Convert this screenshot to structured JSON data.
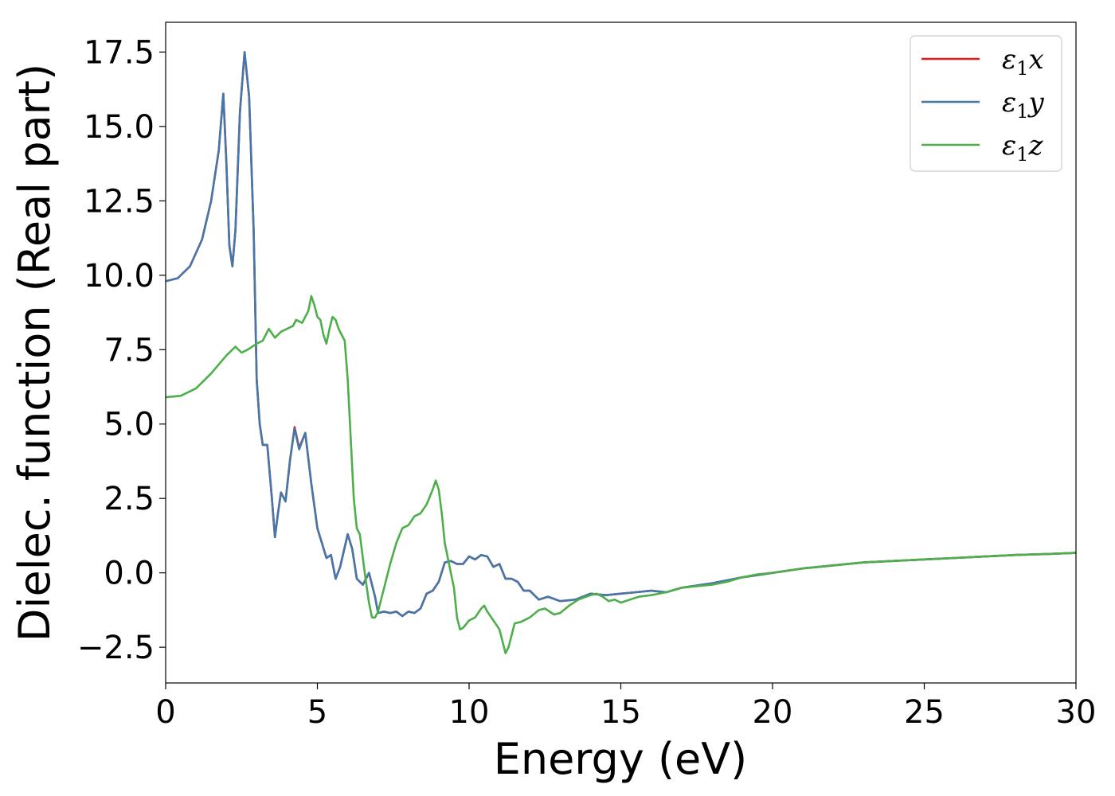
{
  "chart_data": {
    "type": "line",
    "xlabel": "Energy (eV)",
    "ylabel": "Dielec. function (Real part)",
    "xlim": [
      0,
      30
    ],
    "ylim": [
      -3.7,
      18.5
    ],
    "xticks": [
      0,
      5,
      10,
      15,
      20,
      25,
      30
    ],
    "xtick_labels": [
      "0",
      "5",
      "10",
      "15",
      "20",
      "25",
      "30"
    ],
    "yticks": [
      -2.5,
      0.0,
      2.5,
      5.0,
      7.5,
      10.0,
      12.5,
      15.0,
      17.5
    ],
    "ytick_labels": [
      "−2.5",
      "0.0",
      "2.5",
      "5.0",
      "7.5",
      "10.0",
      "12.5",
      "15.0",
      "17.5"
    ],
    "grid": false,
    "legend_position": "top-right",
    "series": [
      {
        "name": "ε₁x",
        "legend_main": "ε",
        "legend_sub": "1",
        "legend_var": "x",
        "color": "#e41a1c",
        "points": [
          [
            0,
            9.8
          ],
          [
            0.4,
            9.9
          ],
          [
            0.8,
            10.3
          ],
          [
            1.2,
            11.2
          ],
          [
            1.5,
            12.5
          ],
          [
            1.75,
            14.2
          ],
          [
            1.9,
            16.1
          ],
          [
            2.0,
            13.8
          ],
          [
            2.1,
            11.0
          ],
          [
            2.2,
            10.3
          ],
          [
            2.3,
            11.5
          ],
          [
            2.45,
            15.5
          ],
          [
            2.6,
            17.5
          ],
          [
            2.75,
            16.0
          ],
          [
            2.9,
            11.5
          ],
          [
            3.0,
            6.5
          ],
          [
            3.1,
            5.0
          ],
          [
            3.2,
            4.3
          ],
          [
            3.35,
            4.3
          ],
          [
            3.5,
            2.5
          ],
          [
            3.6,
            1.2
          ],
          [
            3.7,
            2.0
          ],
          [
            3.8,
            2.7
          ],
          [
            3.95,
            2.4
          ],
          [
            4.1,
            3.8
          ],
          [
            4.25,
            4.9
          ],
          [
            4.4,
            4.2
          ],
          [
            4.6,
            4.7
          ],
          [
            4.8,
            3.0
          ],
          [
            5.0,
            1.5
          ],
          [
            5.15,
            1.0
          ],
          [
            5.3,
            0.5
          ],
          [
            5.45,
            0.6
          ],
          [
            5.6,
            -0.2
          ],
          [
            5.75,
            0.2
          ],
          [
            6.0,
            1.3
          ],
          [
            6.15,
            0.8
          ],
          [
            6.3,
            -0.2
          ],
          [
            6.5,
            -0.4
          ],
          [
            6.7,
            0.0
          ],
          [
            6.9,
            -0.8
          ],
          [
            7.0,
            -1.35
          ],
          [
            7.2,
            -1.3
          ],
          [
            7.4,
            -1.35
          ],
          [
            7.6,
            -1.3
          ],
          [
            7.8,
            -1.45
          ],
          [
            8.0,
            -1.3
          ],
          [
            8.2,
            -1.35
          ],
          [
            8.4,
            -1.2
          ],
          [
            8.6,
            -0.7
          ],
          [
            8.8,
            -0.6
          ],
          [
            9.0,
            -0.3
          ],
          [
            9.2,
            0.35
          ],
          [
            9.4,
            0.4
          ],
          [
            9.6,
            0.3
          ],
          [
            9.8,
            0.3
          ],
          [
            10.0,
            0.55
          ],
          [
            10.2,
            0.45
          ],
          [
            10.4,
            0.6
          ],
          [
            10.6,
            0.55
          ],
          [
            10.8,
            0.2
          ],
          [
            11.0,
            0.3
          ],
          [
            11.2,
            -0.2
          ],
          [
            11.4,
            -0.2
          ],
          [
            11.6,
            -0.3
          ],
          [
            11.8,
            -0.6
          ],
          [
            12.0,
            -0.6
          ],
          [
            12.3,
            -0.9
          ],
          [
            12.6,
            -0.8
          ],
          [
            13.0,
            -0.95
          ],
          [
            13.5,
            -0.9
          ],
          [
            14.0,
            -0.7
          ],
          [
            14.5,
            -0.75
          ],
          [
            15.0,
            -0.7
          ],
          [
            15.5,
            -0.65
          ],
          [
            16.0,
            -0.6
          ],
          [
            16.5,
            -0.65
          ],
          [
            17.0,
            -0.5
          ],
          [
            18.0,
            -0.35
          ],
          [
            19.0,
            -0.15
          ],
          [
            20.0,
            0.0
          ],
          [
            21.0,
            0.15
          ],
          [
            22.0,
            0.25
          ],
          [
            23.0,
            0.35
          ],
          [
            24.0,
            0.4
          ],
          [
            25.0,
            0.45
          ],
          [
            26.0,
            0.5
          ],
          [
            27.0,
            0.55
          ],
          [
            28.0,
            0.6
          ],
          [
            29.0,
            0.63
          ],
          [
            30.0,
            0.67
          ]
        ]
      },
      {
        "name": "ε₁y",
        "legend_main": "ε",
        "legend_sub": "1",
        "legend_var": "y",
        "color": "#4477aa",
        "points": [
          [
            0,
            9.8
          ],
          [
            0.4,
            9.9
          ],
          [
            0.8,
            10.3
          ],
          [
            1.2,
            11.2
          ],
          [
            1.5,
            12.5
          ],
          [
            1.75,
            14.2
          ],
          [
            1.9,
            16.1
          ],
          [
            2.0,
            13.8
          ],
          [
            2.1,
            11.0
          ],
          [
            2.2,
            10.3
          ],
          [
            2.3,
            11.5
          ],
          [
            2.45,
            15.5
          ],
          [
            2.6,
            17.5
          ],
          [
            2.75,
            16.0
          ],
          [
            2.9,
            11.5
          ],
          [
            3.0,
            6.5
          ],
          [
            3.1,
            5.0
          ],
          [
            3.2,
            4.3
          ],
          [
            3.35,
            4.3
          ],
          [
            3.5,
            2.5
          ],
          [
            3.6,
            1.2
          ],
          [
            3.7,
            2.0
          ],
          [
            3.8,
            2.7
          ],
          [
            3.95,
            2.4
          ],
          [
            4.1,
            3.8
          ],
          [
            4.25,
            4.85
          ],
          [
            4.4,
            4.15
          ],
          [
            4.6,
            4.7
          ],
          [
            4.8,
            3.0
          ],
          [
            5.0,
            1.5
          ],
          [
            5.15,
            1.0
          ],
          [
            5.3,
            0.5
          ],
          [
            5.45,
            0.6
          ],
          [
            5.6,
            -0.2
          ],
          [
            5.75,
            0.2
          ],
          [
            6.0,
            1.3
          ],
          [
            6.15,
            0.8
          ],
          [
            6.3,
            -0.2
          ],
          [
            6.5,
            -0.4
          ],
          [
            6.7,
            0.0
          ],
          [
            6.9,
            -0.8
          ],
          [
            7.0,
            -1.35
          ],
          [
            7.2,
            -1.3
          ],
          [
            7.4,
            -1.35
          ],
          [
            7.6,
            -1.3
          ],
          [
            7.8,
            -1.45
          ],
          [
            8.0,
            -1.3
          ],
          [
            8.2,
            -1.35
          ],
          [
            8.4,
            -1.2
          ],
          [
            8.6,
            -0.7
          ],
          [
            8.8,
            -0.6
          ],
          [
            9.0,
            -0.3
          ],
          [
            9.2,
            0.35
          ],
          [
            9.4,
            0.4
          ],
          [
            9.6,
            0.3
          ],
          [
            9.8,
            0.3
          ],
          [
            10.0,
            0.55
          ],
          [
            10.2,
            0.45
          ],
          [
            10.4,
            0.6
          ],
          [
            10.6,
            0.55
          ],
          [
            10.8,
            0.2
          ],
          [
            11.0,
            0.3
          ],
          [
            11.2,
            -0.2
          ],
          [
            11.4,
            -0.2
          ],
          [
            11.6,
            -0.3
          ],
          [
            11.8,
            -0.6
          ],
          [
            12.0,
            -0.6
          ],
          [
            12.3,
            -0.9
          ],
          [
            12.6,
            -0.8
          ],
          [
            13.0,
            -0.95
          ],
          [
            13.5,
            -0.9
          ],
          [
            14.0,
            -0.7
          ],
          [
            14.5,
            -0.75
          ],
          [
            15.0,
            -0.7
          ],
          [
            15.5,
            -0.65
          ],
          [
            16.0,
            -0.6
          ],
          [
            16.5,
            -0.65
          ],
          [
            17.0,
            -0.5
          ],
          [
            18.0,
            -0.35
          ],
          [
            19.0,
            -0.15
          ],
          [
            20.0,
            0.0
          ],
          [
            21.0,
            0.15
          ],
          [
            22.0,
            0.25
          ],
          [
            23.0,
            0.35
          ],
          [
            24.0,
            0.4
          ],
          [
            25.0,
            0.45
          ],
          [
            26.0,
            0.5
          ],
          [
            27.0,
            0.55
          ],
          [
            28.0,
            0.6
          ],
          [
            29.0,
            0.63
          ],
          [
            30.0,
            0.67
          ]
        ]
      },
      {
        "name": "ε₁z",
        "legend_main": "ε",
        "legend_sub": "1",
        "legend_var": "z",
        "color": "#4daf4a",
        "points": [
          [
            0,
            5.9
          ],
          [
            0.5,
            5.95
          ],
          [
            1.0,
            6.2
          ],
          [
            1.5,
            6.7
          ],
          [
            2.0,
            7.3
          ],
          [
            2.3,
            7.6
          ],
          [
            2.5,
            7.4
          ],
          [
            2.7,
            7.5
          ],
          [
            3.0,
            7.7
          ],
          [
            3.2,
            7.8
          ],
          [
            3.4,
            8.2
          ],
          [
            3.6,
            7.9
          ],
          [
            3.8,
            8.1
          ],
          [
            4.0,
            8.2
          ],
          [
            4.2,
            8.3
          ],
          [
            4.3,
            8.5
          ],
          [
            4.5,
            8.4
          ],
          [
            4.7,
            8.8
          ],
          [
            4.8,
            9.3
          ],
          [
            4.9,
            9.0
          ],
          [
            5.0,
            8.6
          ],
          [
            5.1,
            8.5
          ],
          [
            5.2,
            8.0
          ],
          [
            5.3,
            7.7
          ],
          [
            5.4,
            8.2
          ],
          [
            5.5,
            8.6
          ],
          [
            5.6,
            8.5
          ],
          [
            5.7,
            8.2
          ],
          [
            5.8,
            8.0
          ],
          [
            5.9,
            7.8
          ],
          [
            6.0,
            6.5
          ],
          [
            6.1,
            4.5
          ],
          [
            6.2,
            2.5
          ],
          [
            6.3,
            1.5
          ],
          [
            6.4,
            1.3
          ],
          [
            6.5,
            0.5
          ],
          [
            6.6,
            -0.3
          ],
          [
            6.7,
            -1.0
          ],
          [
            6.8,
            -1.5
          ],
          [
            6.9,
            -1.5
          ],
          [
            7.0,
            -1.3
          ],
          [
            7.2,
            -0.5
          ],
          [
            7.4,
            0.3
          ],
          [
            7.6,
            1.0
          ],
          [
            7.8,
            1.5
          ],
          [
            8.0,
            1.6
          ],
          [
            8.2,
            1.9
          ],
          [
            8.4,
            2.0
          ],
          [
            8.6,
            2.3
          ],
          [
            8.8,
            2.8
          ],
          [
            8.9,
            3.1
          ],
          [
            9.0,
            2.8
          ],
          [
            9.1,
            2.0
          ],
          [
            9.2,
            1.0
          ],
          [
            9.3,
            0.5
          ],
          [
            9.4,
            0.0
          ],
          [
            9.5,
            -0.5
          ],
          [
            9.6,
            -1.5
          ],
          [
            9.7,
            -1.9
          ],
          [
            9.8,
            -1.85
          ],
          [
            10.0,
            -1.6
          ],
          [
            10.2,
            -1.5
          ],
          [
            10.4,
            -1.2
          ],
          [
            10.5,
            -1.1
          ],
          [
            10.6,
            -1.3
          ],
          [
            10.8,
            -1.6
          ],
          [
            11.0,
            -1.9
          ],
          [
            11.2,
            -2.7
          ],
          [
            11.3,
            -2.5
          ],
          [
            11.5,
            -1.7
          ],
          [
            11.7,
            -1.65
          ],
          [
            12.0,
            -1.5
          ],
          [
            12.3,
            -1.25
          ],
          [
            12.5,
            -1.2
          ],
          [
            12.8,
            -1.4
          ],
          [
            13.0,
            -1.35
          ],
          [
            13.3,
            -1.1
          ],
          [
            13.6,
            -0.9
          ],
          [
            14.0,
            -0.75
          ],
          [
            14.2,
            -0.7
          ],
          [
            14.4,
            -0.8
          ],
          [
            14.6,
            -0.95
          ],
          [
            14.8,
            -0.9
          ],
          [
            15.0,
            -1.0
          ],
          [
            15.3,
            -0.9
          ],
          [
            15.6,
            -0.8
          ],
          [
            16.0,
            -0.75
          ],
          [
            16.5,
            -0.65
          ],
          [
            17.0,
            -0.5
          ],
          [
            17.5,
            -0.45
          ],
          [
            18.0,
            -0.4
          ],
          [
            18.5,
            -0.3
          ],
          [
            19.0,
            -0.15
          ],
          [
            19.5,
            -0.05
          ],
          [
            20.0,
            0.0
          ],
          [
            21.0,
            0.15
          ],
          [
            22.0,
            0.25
          ],
          [
            23.0,
            0.35
          ],
          [
            24.0,
            0.4
          ],
          [
            25.0,
            0.45
          ],
          [
            26.0,
            0.5
          ],
          [
            27.0,
            0.55
          ],
          [
            28.0,
            0.6
          ],
          [
            29.0,
            0.63
          ],
          [
            30.0,
            0.67
          ]
        ]
      }
    ]
  }
}
